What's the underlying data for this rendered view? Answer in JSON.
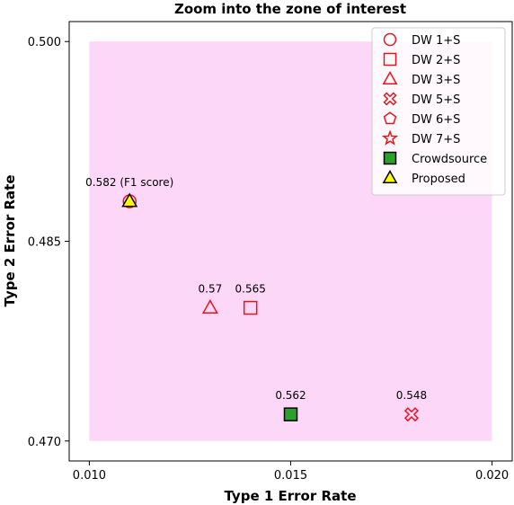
{
  "chart_data": {
    "type": "scatter",
    "title": "Zoom into the zone of interest",
    "xlabel": "Type 1 Error Rate",
    "ylabel": "Type 2 Error Rate",
    "xlim": [
      0.0095,
      0.0205
    ],
    "ylim": [
      0.4685,
      0.5015
    ],
    "xticks": [
      "0.010",
      "0.015",
      "0.020"
    ],
    "yticks": [
      "0.470",
      "0.485",
      "0.500"
    ],
    "grid": false,
    "legend_position": "top-right",
    "zone_of_interest": {
      "x": [
        0.01,
        0.02
      ],
      "y": [
        0.47,
        0.5
      ],
      "color": "#fdd7f7"
    },
    "series": [
      {
        "name": "DW 1+S",
        "marker": "circle",
        "color": "#e8141c",
        "filled": false,
        "points": [
          {
            "x": 0.011,
            "y": 0.488,
            "label": ""
          }
        ]
      },
      {
        "name": "DW 2+S",
        "marker": "square",
        "color": "#e8141c",
        "filled": false,
        "points": [
          {
            "x": 0.014,
            "y": 0.48,
            "label": "0.565"
          }
        ]
      },
      {
        "name": "DW 3+S",
        "marker": "triangle",
        "color": "#e8141c",
        "filled": false,
        "points": [
          {
            "x": 0.013,
            "y": 0.48,
            "label": "0.57"
          }
        ]
      },
      {
        "name": "DW 5+S",
        "marker": "x",
        "color": "#e8141c",
        "filled": false,
        "points": [
          {
            "x": 0.018,
            "y": 0.472,
            "label": "0.548"
          }
        ]
      },
      {
        "name": "DW 6+S",
        "marker": "pentagon",
        "color": "#e8141c",
        "filled": false,
        "points": []
      },
      {
        "name": "DW 7+S",
        "marker": "star",
        "color": "#e8141c",
        "filled": false,
        "points": []
      },
      {
        "name": "Crowdsource",
        "marker": "square",
        "color": "#2ca02c",
        "filled": true,
        "points": [
          {
            "x": 0.015,
            "y": 0.472,
            "label": "0.562"
          }
        ]
      },
      {
        "name": "Proposed",
        "marker": "triangle",
        "color": "#ffff00",
        "filled": true,
        "points": [
          {
            "x": 0.011,
            "y": 0.488,
            "label": "0.582 (F1 score)"
          }
        ]
      }
    ]
  }
}
